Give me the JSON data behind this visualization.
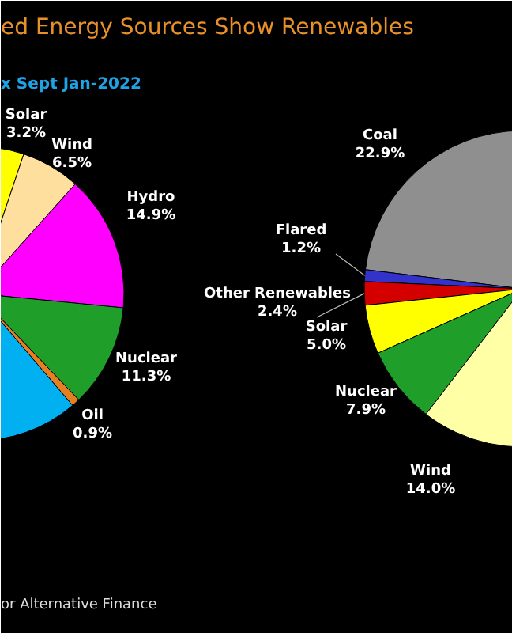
{
  "chart_data": [
    {
      "type": "pie",
      "title": "ed Energy Sources Show Renewables",
      "subtitle": "x Sept Jan-2022",
      "categories": [
        "Solar",
        "Wind",
        "Hydro",
        "Nuclear",
        "Oil",
        null
      ],
      "values": [
        3.2,
        6.5,
        14.9,
        11.3,
        0.9,
        23.1
      ],
      "value_labels": [
        "3.2%",
        "6.5%",
        "14.9%",
        "11.3%",
        "0.9%",
        null
      ],
      "colors": [
        "#ffff00",
        "#ffdf9e",
        "#ff00ff",
        "#1f9e2a",
        "#e67e22",
        "#00b0f0"
      ]
    },
    {
      "type": "pie",
      "annotations": [
        "or Alternative Finance"
      ],
      "categories": [
        "Coal",
        "Flared",
        "Other Renewables",
        "Solar",
        "Nuclear",
        "Wind"
      ],
      "values": [
        22.9,
        1.2,
        2.4,
        5.0,
        7.9,
        14.0
      ],
      "value_labels": [
        "22.9%",
        "1.2%",
        "2.4%",
        "5.0%",
        "7.9%",
        "14.0%"
      ],
      "colors": [
        "#8f8f8f",
        "#3333cc",
        "#d40000",
        "#ffff00",
        "#1f9e2a",
        "#ffffa6"
      ]
    }
  ]
}
